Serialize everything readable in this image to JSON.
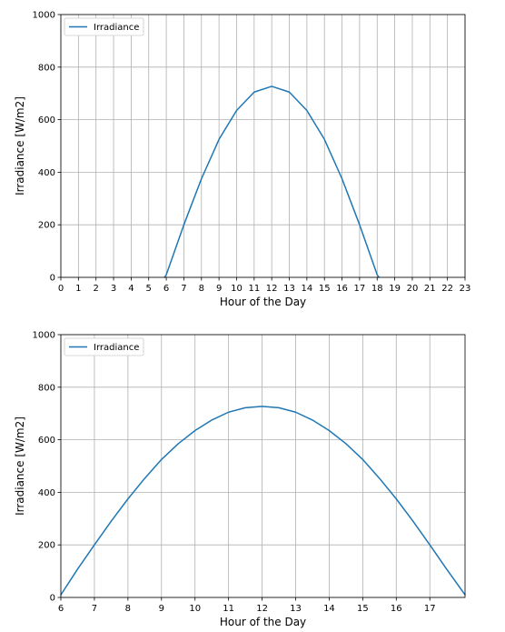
{
  "chart_data": [
    {
      "type": "line",
      "xlabel": "Hour of the Day",
      "ylabel": "Irradiance [W/m2]",
      "xlim": [
        0,
        23
      ],
      "ylim": [
        0,
        1000
      ],
      "xticks": [
        0,
        1,
        2,
        3,
        4,
        5,
        6,
        7,
        8,
        9,
        10,
        11,
        12,
        13,
        14,
        15,
        16,
        17,
        18,
        19,
        20,
        21,
        22,
        23
      ],
      "yticks": [
        0,
        200,
        400,
        600,
        800,
        1000
      ],
      "grid": true,
      "legend_position": "upper-left",
      "color": "#1f77b4",
      "series": [
        {
          "name": "Irradiance",
          "x": [
            5.9,
            6,
            7,
            8,
            9,
            10,
            11,
            12,
            13,
            14,
            15,
            16,
            17,
            18,
            18.1
          ],
          "y": [
            0,
            10,
            200,
            375,
            525,
            635,
            705,
            727,
            705,
            635,
            525,
            375,
            200,
            10,
            0
          ]
        }
      ]
    },
    {
      "type": "line",
      "xlabel": "Hour of the Day",
      "ylabel": "Irradiance [W/m2]",
      "xlim": [
        6,
        18.05
      ],
      "ylim": [
        0,
        1000
      ],
      "xticks": [
        6,
        7,
        8,
        9,
        10,
        11,
        12,
        13,
        14,
        15,
        16,
        17
      ],
      "yticks": [
        0,
        200,
        400,
        600,
        800,
        1000
      ],
      "grid": true,
      "legend_position": "upper-left",
      "color": "#1f77b4",
      "series": [
        {
          "name": "Irradiance",
          "x": [
            6,
            6.5,
            7,
            7.5,
            8,
            8.5,
            9,
            9.5,
            10,
            10.5,
            11,
            11.5,
            12,
            12.5,
            13,
            13.5,
            14,
            14.5,
            15,
            15.5,
            16,
            16.5,
            17,
            17.5,
            18.05
          ],
          "y": [
            10,
            108,
            200,
            290,
            375,
            453,
            525,
            585,
            635,
            675,
            705,
            722,
            727,
            722,
            705,
            675,
            635,
            585,
            525,
            453,
            375,
            290,
            200,
            108,
            10
          ]
        }
      ]
    }
  ]
}
